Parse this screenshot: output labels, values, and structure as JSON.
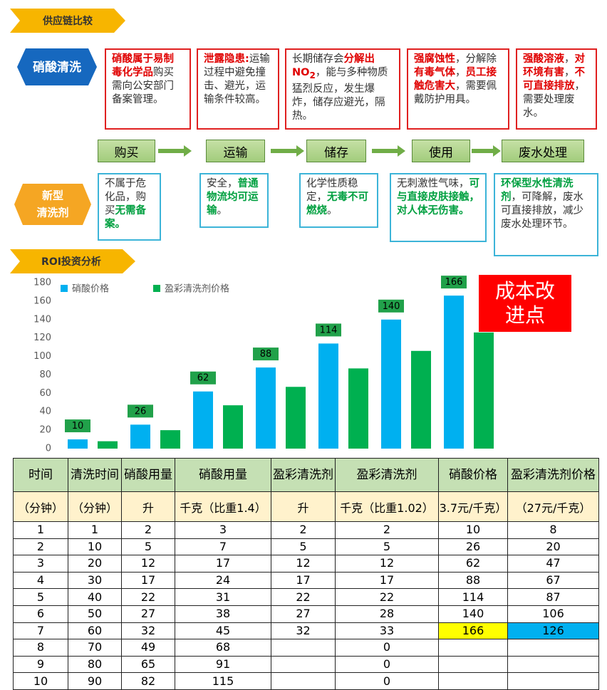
{
  "supply_chain": {
    "section_title": "供应链比较",
    "nitric_label": "硝酸清洗",
    "nitric_boxes": [
      [
        {
          "text": "硝酸属于易制毒化学品",
          "em": true
        },
        {
          "text": "购买需向公安部门备案管理。"
        }
      ],
      [
        {
          "text": "泄露隐患:",
          "em": true
        },
        {
          "text": "运输过程中避免撞击、避光，运输条件较高。"
        }
      ],
      [
        {
          "text": "长期储存会"
        },
        {
          "text": "分解出NO",
          "em": true
        },
        {
          "text": "2",
          "em": true,
          "sub": true
        },
        {
          "text": "，能与多种物质猛烈反应，发生爆炸，储存应避光，隔热。"
        }
      ],
      [
        {
          "text": "强腐蚀性",
          "em": true
        },
        {
          "text": "，分解除"
        },
        {
          "text": "有毒气体",
          "em": true
        },
        {
          "text": "，"
        },
        {
          "text": "员工接触危害大",
          "em": true
        },
        {
          "text": "，需要佩戴防护用具。"
        }
      ],
      [
        {
          "text": "强酸溶液",
          "em": true
        },
        {
          "text": "，"
        },
        {
          "text": "对环境有害",
          "em": true
        },
        {
          "text": "，"
        },
        {
          "text": "不可直接排放",
          "em": true
        },
        {
          "text": "，需要处理废水。"
        }
      ]
    ],
    "steps": [
      "购买",
      "运输",
      "储存",
      "使用",
      "废水处理"
    ],
    "cleaner_label": [
      "新型",
      "清洗剂"
    ],
    "cleaner_boxes": [
      [
        {
          "text": "不属于危化品，购买"
        },
        {
          "text": "无需备案。",
          "em": true
        }
      ],
      [
        {
          "text": "安全，"
        },
        {
          "text": "普通物流均可运输",
          "em": true
        },
        {
          "text": "。"
        }
      ],
      [
        {
          "text": "化学性质稳定，"
        },
        {
          "text": "无毒不可燃烧",
          "em": true
        },
        {
          "text": "。"
        }
      ],
      [
        {
          "text": "无刺激性气味，"
        },
        {
          "text": "可与直接皮肤接触，对人体无伤害。",
          "em": true
        }
      ],
      [
        {
          "text": "环保型水性清洗剂",
          "em": true
        },
        {
          "text": "，可降解，废水可直接排放，减少废水处理环节。"
        }
      ]
    ]
  },
  "roi_title": "ROI投资分析",
  "chart_data": {
    "type": "bar",
    "series": [
      {
        "name": "硝酸价格",
        "color": "#00b0f0",
        "values": [
          10,
          26,
          62,
          88,
          114,
          140,
          166
        ],
        "show_values": true
      },
      {
        "name": "盈彩清洗剂价格",
        "color": "#00b050",
        "values": [
          8,
          20,
          47,
          67,
          87,
          106,
          126
        ]
      }
    ],
    "ylim": [
      0,
      180
    ],
    "yticks": [
      0,
      20,
      40,
      60,
      80,
      100,
      120,
      140,
      160,
      180
    ],
    "annotation": "成本改进点"
  },
  "table": {
    "header": [
      "时间",
      "清洗时间",
      "硝酸用量",
      "硝酸用量",
      "盈彩清洗剂",
      "盈彩清洗剂",
      "硝酸价格",
      "盈彩清洗剂价格"
    ],
    "units": [
      "（分钟）",
      "（分钟）",
      "升",
      "千克（比重1.4）",
      "升",
      "千克（比重1.02）",
      "3.7元/千克）",
      "（27元/千克）"
    ],
    "rows": [
      [
        1,
        1,
        2,
        3,
        2,
        2,
        10,
        8
      ],
      [
        2,
        10,
        5,
        7,
        5,
        5,
        26,
        20
      ],
      [
        3,
        20,
        12,
        17,
        12,
        12,
        62,
        47
      ],
      [
        4,
        30,
        17,
        24,
        17,
        17,
        88,
        67
      ],
      [
        5,
        40,
        22,
        31,
        22,
        22,
        114,
        87
      ],
      [
        6,
        50,
        27,
        38,
        27,
        28,
        140,
        106
      ],
      [
        7,
        60,
        32,
        45,
        32,
        33,
        {
          "value": 166,
          "fill": "#ffff00"
        },
        {
          "value": 126,
          "fill": "#00b0f0"
        }
      ],
      [
        8,
        70,
        49,
        68,
        null,
        0,
        null,
        null
      ],
      [
        9,
        80,
        65,
        91,
        null,
        0,
        null,
        null
      ],
      [
        10,
        90,
        82,
        115,
        null,
        0,
        null,
        null
      ]
    ]
  }
}
